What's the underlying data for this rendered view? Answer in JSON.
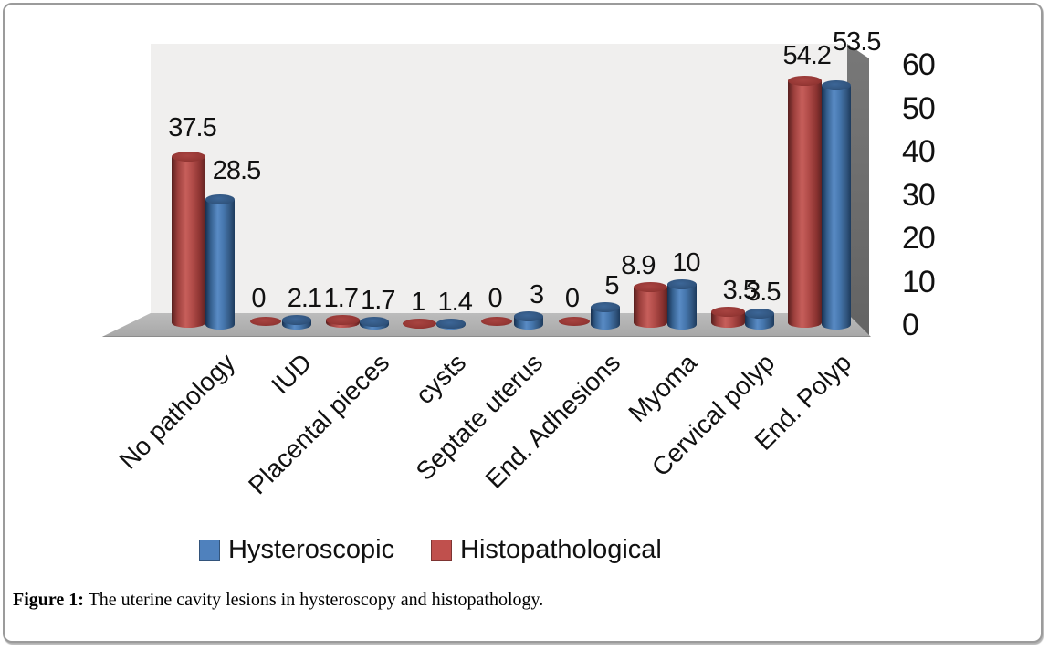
{
  "figure": {
    "caption_prefix": "Figure 1:",
    "caption_text": " The uterine cavity lesions in hysteroscopy and histopathology."
  },
  "chart_data": {
    "type": "bar",
    "style": "3d-cylinder",
    "title": "",
    "xlabel": "",
    "ylabel": "",
    "categories": [
      "No pathology",
      "IUD",
      "Placental pieces",
      "cysts",
      "Septate uterus",
      "End. Adhesions",
      "Myoma",
      "Cervical polyp",
      "End. Polyp"
    ],
    "series": [
      {
        "name": "Histopathological",
        "color": "#C0504D",
        "values": [
          37.5,
          0,
          1.7,
          1,
          0,
          0,
          8.9,
          3.5,
          54.2
        ],
        "labels": [
          "37.5",
          "0",
          "1.7",
          "1",
          "0",
          "0",
          "8.9",
          "3.5",
          "54.2"
        ]
      },
      {
        "name": "Hysteroscopic",
        "color": "#4F81BD",
        "values": [
          28.5,
          2.1,
          1.7,
          1.4,
          3,
          5,
          10,
          3.5,
          53.5
        ],
        "labels": [
          "28.5",
          "2.1",
          "1.7",
          "1.4",
          "3",
          "5",
          "10",
          "3.5",
          "53.5"
        ]
      }
    ],
    "yticks": [
      0,
      10,
      20,
      30,
      40,
      50,
      60
    ],
    "ylim": [
      0,
      60
    ],
    "grid": false,
    "legend_position": "bottom",
    "legend": [
      {
        "label": "Hysteroscopic",
        "color": "#4F81BD"
      },
      {
        "label": "Histopathological",
        "color": "#C0504D"
      }
    ]
  }
}
